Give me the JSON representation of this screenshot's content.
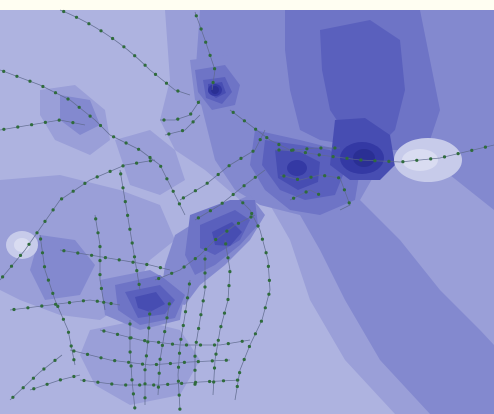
{
  "map": {
    "kind": "interpolated density surface with point network overlay",
    "legend": null
  },
  "palette": {
    "paper": "#fffef2",
    "base": "#aeb3e0",
    "level1": "#9a9fd8",
    "level2": "#8389cf",
    "level3": "#6e74c6",
    "level4": "#5a60bd",
    "level5": "#474db2",
    "level6": "#3439a4",
    "hotspot": "#2a2f94",
    "halo": "#d9dcf1",
    "network": "#5e6a8c",
    "node": "#2f6b3c"
  }
}
